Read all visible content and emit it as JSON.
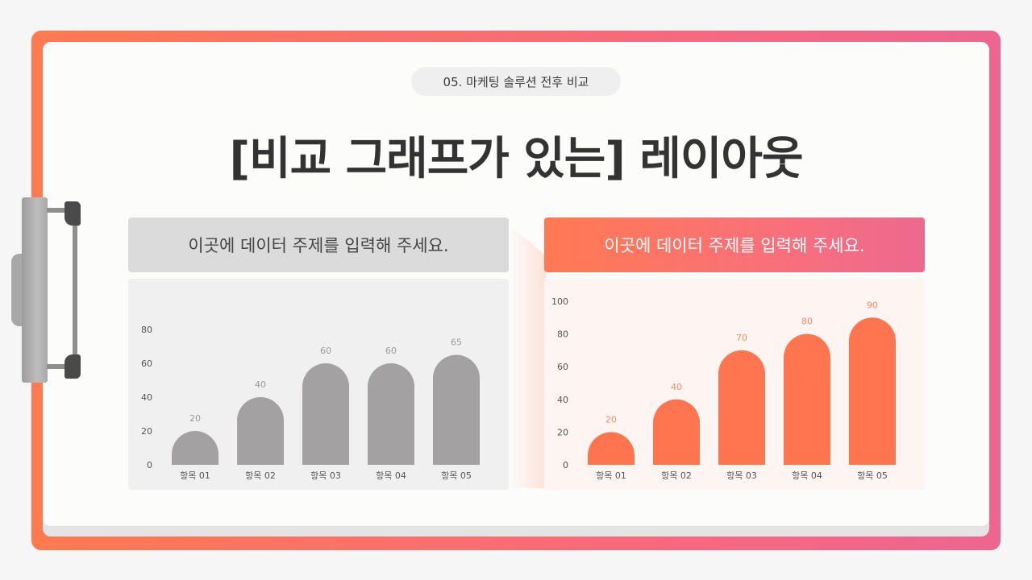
{
  "slide": {
    "tag": "05. 마케팅 솔루션 전후 비교",
    "title": "[비교 그래프가 있는] 레이아웃"
  },
  "panels": {
    "left_header": "이곳에 데이터 주제를 입력해 주세요.",
    "right_header": "이곳에 데이터 주제를 입력해 주세요."
  },
  "colors": {
    "before_bar": "#a3a1a1",
    "after_bar": "#ff7550",
    "before_label": "#9a9a9a",
    "after_label": "#ff8a66"
  },
  "chart_data": [
    {
      "type": "bar",
      "title": "",
      "categories": [
        "항목 01",
        "항목 02",
        "항목 03",
        "항목 04",
        "항목 05"
      ],
      "values": [
        20,
        40,
        60,
        60,
        65
      ],
      "yticks": [
        0,
        20,
        40,
        60,
        80
      ],
      "ylim": [
        0,
        80
      ],
      "xlabel": "",
      "ylabel": "",
      "grid": false
    },
    {
      "type": "bar",
      "title": "",
      "categories": [
        "항목 01",
        "항목 02",
        "항목 03",
        "항목 04",
        "항목 05"
      ],
      "values": [
        20,
        40,
        70,
        80,
        90
      ],
      "yticks": [
        0,
        20,
        40,
        60,
        80,
        100
      ],
      "ylim": [
        0,
        100
      ],
      "xlabel": "",
      "ylabel": "",
      "grid": false
    }
  ]
}
